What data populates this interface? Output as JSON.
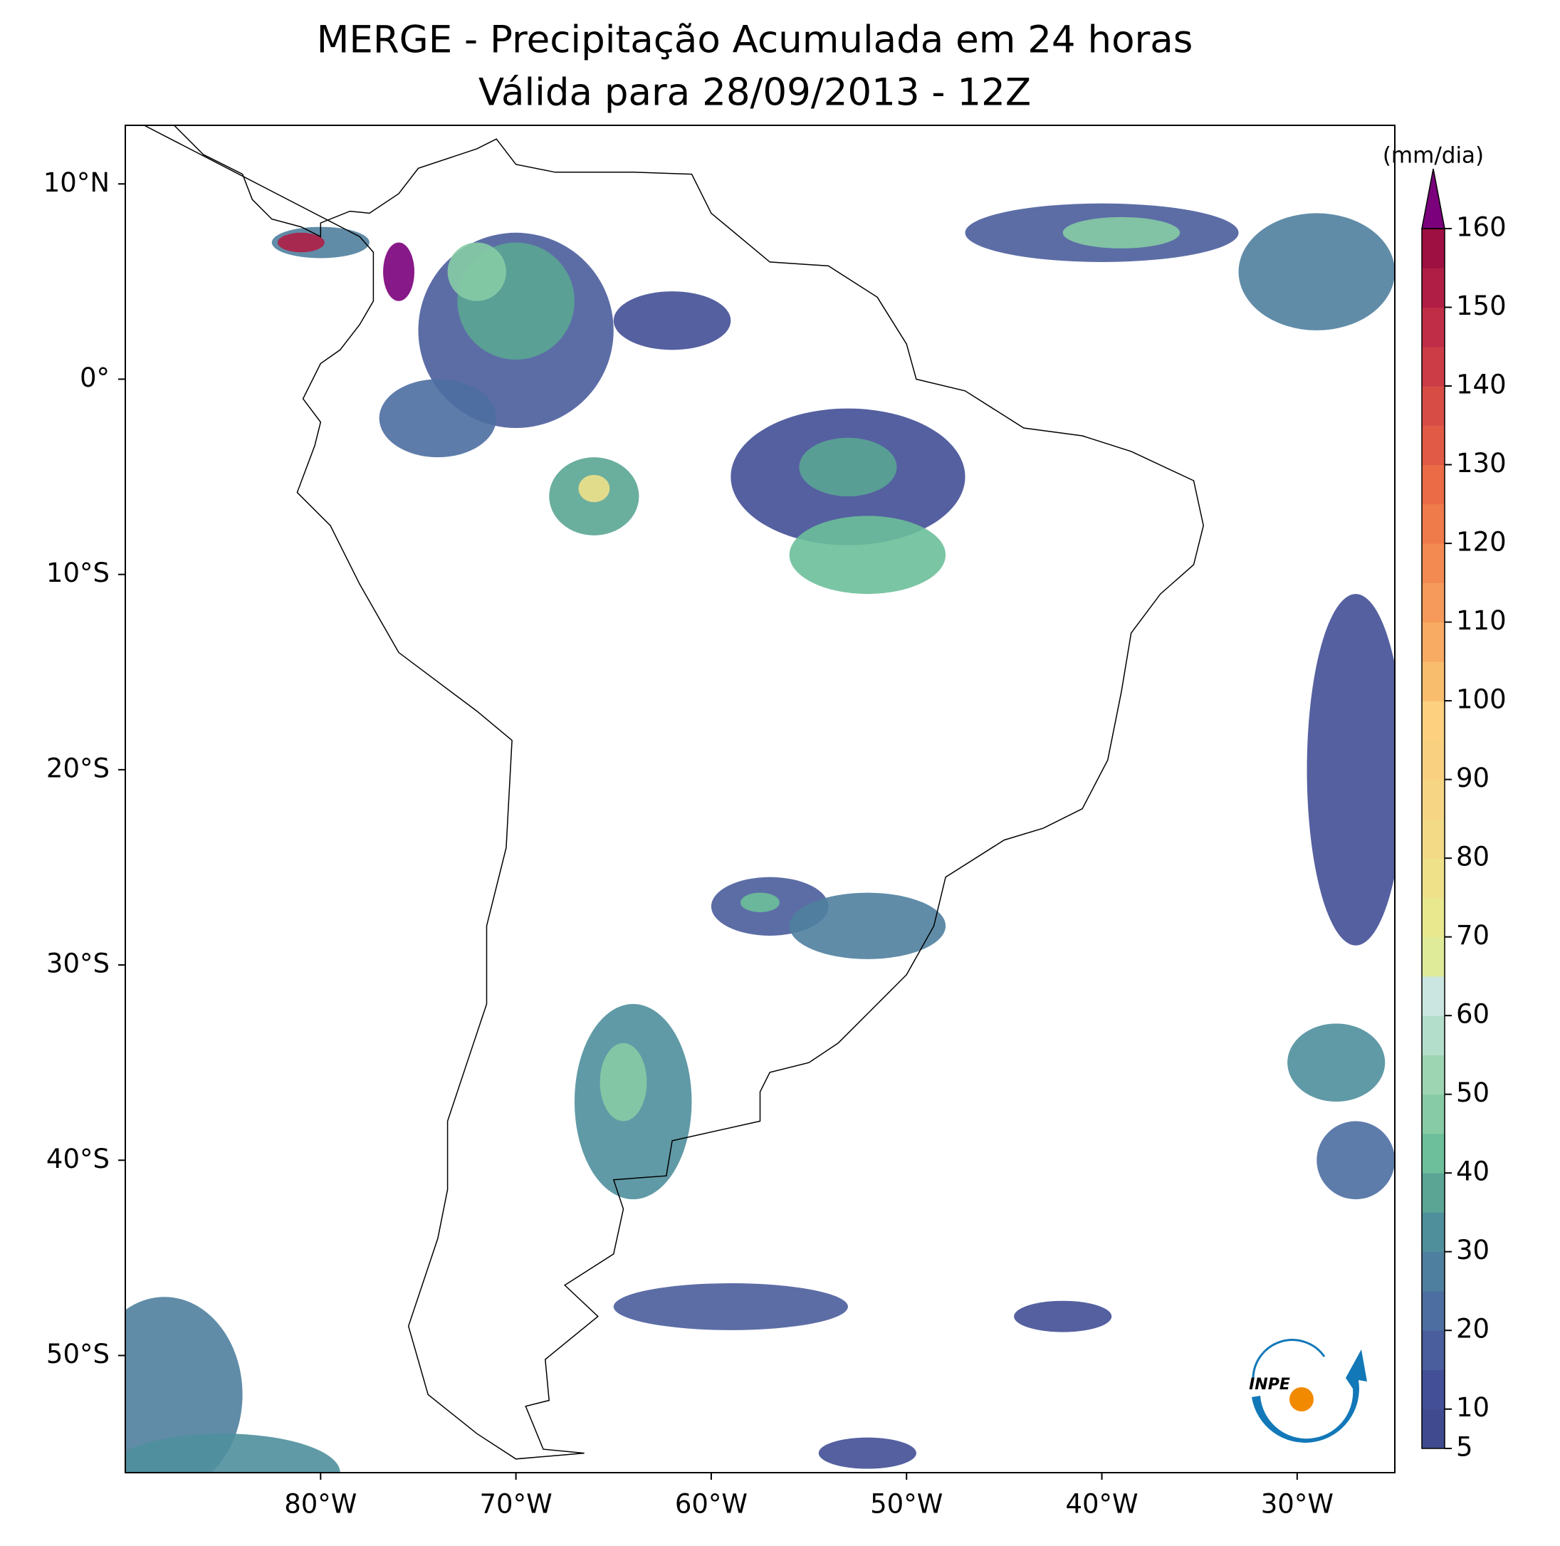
{
  "title": "MERGE - Precipitação Acumulada em 24 horas",
  "subtitle": "Válida para 28/09/2013 - 12Z",
  "map": {
    "xlim": [
      -90,
      -25
    ],
    "ylim": [
      -56,
      13
    ],
    "xticks": [
      {
        "value": -80,
        "label": "80°W"
      },
      {
        "value": -70,
        "label": "70°W"
      },
      {
        "value": -60,
        "label": "60°W"
      },
      {
        "value": -50,
        "label": "50°W"
      },
      {
        "value": -40,
        "label": "40°W"
      },
      {
        "value": -30,
        "label": "30°W"
      }
    ],
    "yticks": [
      {
        "value": 10,
        "label": "10°N"
      },
      {
        "value": 0,
        "label": "0°"
      },
      {
        "value": -10,
        "label": "10°S"
      },
      {
        "value": -20,
        "label": "20°S"
      },
      {
        "value": -30,
        "label": "30°S"
      },
      {
        "value": -40,
        "label": "40°S"
      },
      {
        "value": -50,
        "label": "50°S"
      }
    ]
  },
  "colorbar": {
    "label": "(mm/dia)",
    "lim": [
      5,
      160
    ],
    "ticks": [
      5,
      10,
      20,
      30,
      40,
      50,
      60,
      70,
      80,
      90,
      100,
      110,
      120,
      130,
      140,
      150,
      160
    ],
    "levels": [
      5,
      10,
      15,
      20,
      25,
      30,
      35,
      40,
      45,
      50,
      55,
      60,
      65,
      70,
      75,
      80,
      85,
      90,
      95,
      100,
      105,
      110,
      115,
      120,
      125,
      130,
      135,
      140,
      145,
      150,
      155,
      160
    ],
    "colors": [
      "#3f4a8f",
      "#434f96",
      "#4a5d9c",
      "#4d6ea1",
      "#4f7f9f",
      "#4f8f9c",
      "#5aa594",
      "#6cbf9a",
      "#86cba5",
      "#9dd5b2",
      "#b3decb",
      "#cbe6e0",
      "#e0eb9a",
      "#eae88e",
      "#eee18a",
      "#f2da86",
      "#f6d584",
      "#f9d080",
      "#fcd07e",
      "#f9bd6e",
      "#f8ab63",
      "#f59a5a",
      "#f28a52",
      "#ef7a4a",
      "#ea6b45",
      "#e05a45",
      "#d84c46",
      "#cc3c47",
      "#c02d47",
      "#b01e45",
      "#9e0f42"
    ],
    "extend": "max",
    "extend_color": "#7b007b"
  },
  "logo": "INPE"
}
